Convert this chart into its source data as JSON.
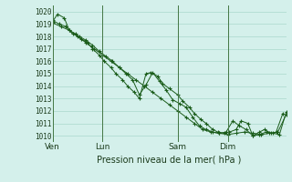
{
  "xlabel": "Pression niveau de la mer( hPa )",
  "background_color": "#d4f0eb",
  "grid_color": "#aad8cc",
  "line_color": "#1a5c1a",
  "ylim": [
    1009.5,
    1020.5
  ],
  "yticks": [
    1010,
    1011,
    1012,
    1013,
    1014,
    1015,
    1016,
    1017,
    1018,
    1019,
    1020
  ],
  "xtick_labels": [
    "Ven",
    "Lun",
    "Sam",
    "Dim"
  ],
  "xtick_positions": [
    0,
    30,
    75,
    105
  ],
  "xlim": [
    0,
    140
  ],
  "vline_positions": [
    0,
    30,
    75,
    105
  ],
  "series1_x": [
    0,
    3,
    7,
    10,
    14,
    17,
    21,
    24,
    28,
    31,
    35,
    38,
    42,
    45,
    49,
    52,
    56,
    59,
    63,
    66,
    70,
    75,
    78,
    82,
    85,
    89,
    92,
    96,
    99,
    103,
    106,
    110,
    113,
    117,
    120,
    124,
    127,
    131,
    134,
    138
  ],
  "series1_y": [
    1019.2,
    1019.8,
    1019.5,
    1018.5,
    1018.2,
    1017.8,
    1017.5,
    1017.0,
    1016.5,
    1016.0,
    1015.5,
    1015.0,
    1014.5,
    1014.0,
    1013.5,
    1013.0,
    1015.0,
    1015.1,
    1014.8,
    1014.2,
    1013.8,
    1013.3,
    1012.8,
    1012.3,
    1011.8,
    1011.3,
    1011.0,
    1010.5,
    1010.3,
    1010.2,
    1010.3,
    1010.5,
    1011.2,
    1011.0,
    1010.0,
    1010.3,
    1010.5,
    1010.2,
    1010.3,
    1011.8
  ],
  "series2_x": [
    0,
    5,
    10,
    15,
    20,
    25,
    30,
    35,
    40,
    45,
    50,
    55,
    60,
    65,
    70,
    75,
    80,
    85,
    90,
    95,
    100,
    105,
    110,
    115,
    120,
    125,
    130,
    135,
    140
  ],
  "series2_y": [
    1019.1,
    1018.8,
    1018.5,
    1018.0,
    1017.5,
    1017.0,
    1016.5,
    1016.0,
    1015.5,
    1015.0,
    1014.5,
    1014.0,
    1013.5,
    1013.0,
    1012.5,
    1012.0,
    1011.5,
    1011.0,
    1010.5,
    1010.3,
    1010.2,
    1010.1,
    1010.2,
    1010.3,
    1010.2,
    1010.1,
    1010.2,
    1010.3,
    1011.7
  ],
  "series3_x": [
    0,
    4,
    8,
    12,
    16,
    20,
    24,
    28,
    32,
    36,
    40,
    44,
    48,
    52,
    56,
    60,
    64,
    68,
    72,
    76,
    80,
    84,
    88,
    92,
    96,
    100,
    104,
    108,
    112,
    116,
    120,
    124,
    128,
    132,
    136,
    140
  ],
  "series3_y": [
    1019.3,
    1019.0,
    1018.8,
    1018.2,
    1018.0,
    1017.7,
    1017.3,
    1016.8,
    1016.4,
    1016.0,
    1015.5,
    1015.0,
    1014.5,
    1013.3,
    1014.1,
    1015.1,
    1014.4,
    1013.7,
    1012.9,
    1012.6,
    1012.3,
    1011.5,
    1010.8,
    1010.5,
    1010.3,
    1010.2,
    1010.3,
    1011.2,
    1010.8,
    1010.5,
    1010.0,
    1010.1,
    1010.3,
    1010.2,
    1010.1,
    1011.9
  ]
}
